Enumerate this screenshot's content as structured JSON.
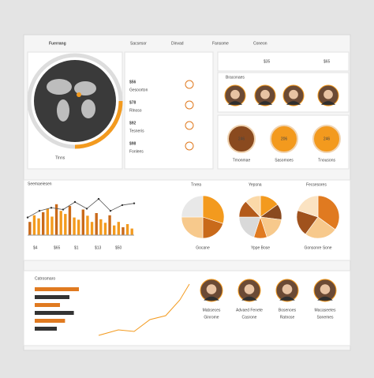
{
  "header": {
    "title": "Fuerrang",
    "tabs": [
      "Sacsesor",
      "Dinvad",
      "Fansome",
      "Coneon"
    ]
  },
  "kpis": [
    "$35",
    "$65"
  ],
  "stats": [
    {
      "value": "$56",
      "label": "Gesoorton"
    },
    {
      "value": "$78",
      "label": "Rlnoso"
    },
    {
      "value": "$92",
      "label": "Tesneris"
    },
    {
      "value": "$98",
      "label": "Fonlees"
    }
  ],
  "globe": {
    "caption": "Tlnns"
  },
  "team": {
    "title": "Braconaes"
  },
  "gauges": [
    {
      "value": "246",
      "label": "Tmonmae",
      "color": "#8a4a1f"
    },
    {
      "value": "206",
      "label": "Sasomoes",
      "color": "#f39a1e"
    },
    {
      "value": "246",
      "label": "Tnousons",
      "color": "#f39a1e"
    }
  ],
  "bar_chart": {
    "title": "Seemaeiesen",
    "ylim": [
      0,
      100
    ],
    "values": [
      30,
      45,
      38,
      52,
      60,
      42,
      70,
      55,
      48,
      66,
      40,
      35,
      58,
      44,
      30,
      50,
      36,
      28,
      45,
      22,
      30,
      18,
      25,
      15
    ],
    "line": [
      40,
      55,
      62,
      58,
      75,
      60,
      82,
      55,
      68,
      72
    ],
    "labels": [
      "$4",
      "$65",
      "$1",
      "$13",
      "$50"
    ]
  },
  "pies": [
    {
      "title": "Tnrea",
      "label": "Gocane",
      "values": [
        30,
        20,
        25,
        25
      ],
      "colors": [
        "#f39a1e",
        "#c96a1a",
        "#f7c98c",
        "#e8e8e8"
      ]
    },
    {
      "title": "Yepsna",
      "label": "Yppe Bose",
      "values": [
        15,
        12,
        18,
        10,
        20,
        13,
        12
      ],
      "colors": [
        "#f39a1e",
        "#8a4a1f",
        "#f7c98c",
        "#e07a20",
        "#d9d9d9",
        "#b35a1a",
        "#fbd9a8"
      ]
    },
    {
      "title": "Fecsesores",
      "label": "Gonsonre Sone",
      "values": [
        35,
        25,
        20,
        20
      ],
      "colors": [
        "#e07a20",
        "#f7c98c",
        "#a0521d",
        "#fbe3c2"
      ]
    }
  ],
  "hbars": {
    "title": "Catrosmaro",
    "values": [
      70,
      55,
      40,
      62,
      48,
      35
    ]
  },
  "people": [
    {
      "name": "Mabseces",
      "role": "Ginrome"
    },
    {
      "name": "Advaed Fenete",
      "role": "Casrone"
    },
    {
      "name": "Bosenoes",
      "role": "Ratnose"
    },
    {
      "name": "Macaseetes",
      "role": "Sonemes"
    }
  ]
}
